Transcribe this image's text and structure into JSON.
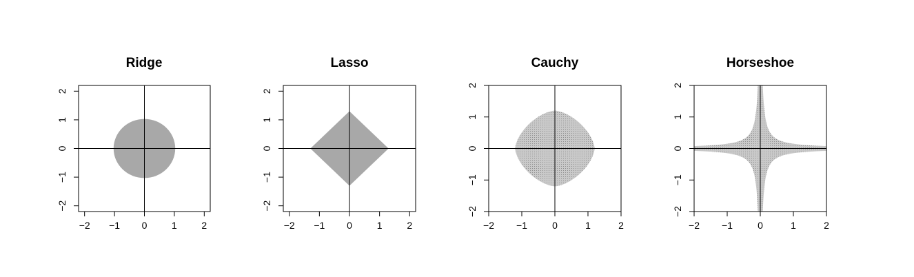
{
  "chart_data": [
    {
      "type": "area",
      "title": "Ridge",
      "region": "circle",
      "radius": 1.03,
      "xlim": [
        -2.2,
        2.2
      ],
      "ylim": [
        -2.2,
        2.2
      ],
      "xticks": [
        -2,
        -1,
        0,
        1,
        2
      ],
      "yticks": [
        -2,
        -1,
        0,
        1,
        2
      ],
      "xtick_labels": [
        "−2",
        "−1",
        "0",
        "1",
        "2"
      ],
      "ytick_labels": [
        "−2",
        "−1",
        "0",
        "1",
        "2"
      ],
      "fill_color": "#a8a8a8",
      "textured": false
    },
    {
      "type": "area",
      "title": "Lasso",
      "region": "diamond",
      "radius": 1.3,
      "xlim": [
        -2.2,
        2.2
      ],
      "ylim": [
        -2.2,
        2.2
      ],
      "xticks": [
        -2,
        -1,
        0,
        1,
        2
      ],
      "yticks": [
        -2,
        -1,
        0,
        1,
        2
      ],
      "xtick_labels": [
        "−2",
        "−1",
        "0",
        "1",
        "2"
      ],
      "ytick_labels": [
        "−2",
        "−1",
        "0",
        "1",
        "2"
      ],
      "fill_color": "#a8a8a8",
      "textured": false
    },
    {
      "type": "area",
      "title": "Cauchy",
      "region": "superellipse",
      "radius": 1.2,
      "exponent": 1.6,
      "xlim": [
        -2,
        2
      ],
      "ylim": [
        -2,
        2
      ],
      "xticks": [
        -2,
        -1,
        0,
        1,
        2
      ],
      "yticks": [
        -2,
        -1,
        0,
        1,
        2
      ],
      "xtick_labels": [
        "−2",
        "−1",
        "0",
        "1",
        "2"
      ],
      "ytick_labels": [
        "−2",
        "−1",
        "0",
        "1",
        "2"
      ],
      "fill_color": "#c2c2c2",
      "textured": true
    },
    {
      "type": "area",
      "title": "Horseshoe",
      "region": "cross",
      "constant": 0.15,
      "xlim": [
        -2,
        2
      ],
      "ylim": [
        -2,
        2
      ],
      "xticks": [
        -2,
        -1,
        0,
        1,
        2
      ],
      "yticks": [
        -2,
        -1,
        0,
        1,
        2
      ],
      "xtick_labels": [
        "−2",
        "−1",
        "0",
        "1",
        "2"
      ],
      "ytick_labels": [
        "−2",
        "−1",
        "0",
        "1",
        "2"
      ],
      "fill_color": "#b0b0b0",
      "textured": true
    }
  ]
}
